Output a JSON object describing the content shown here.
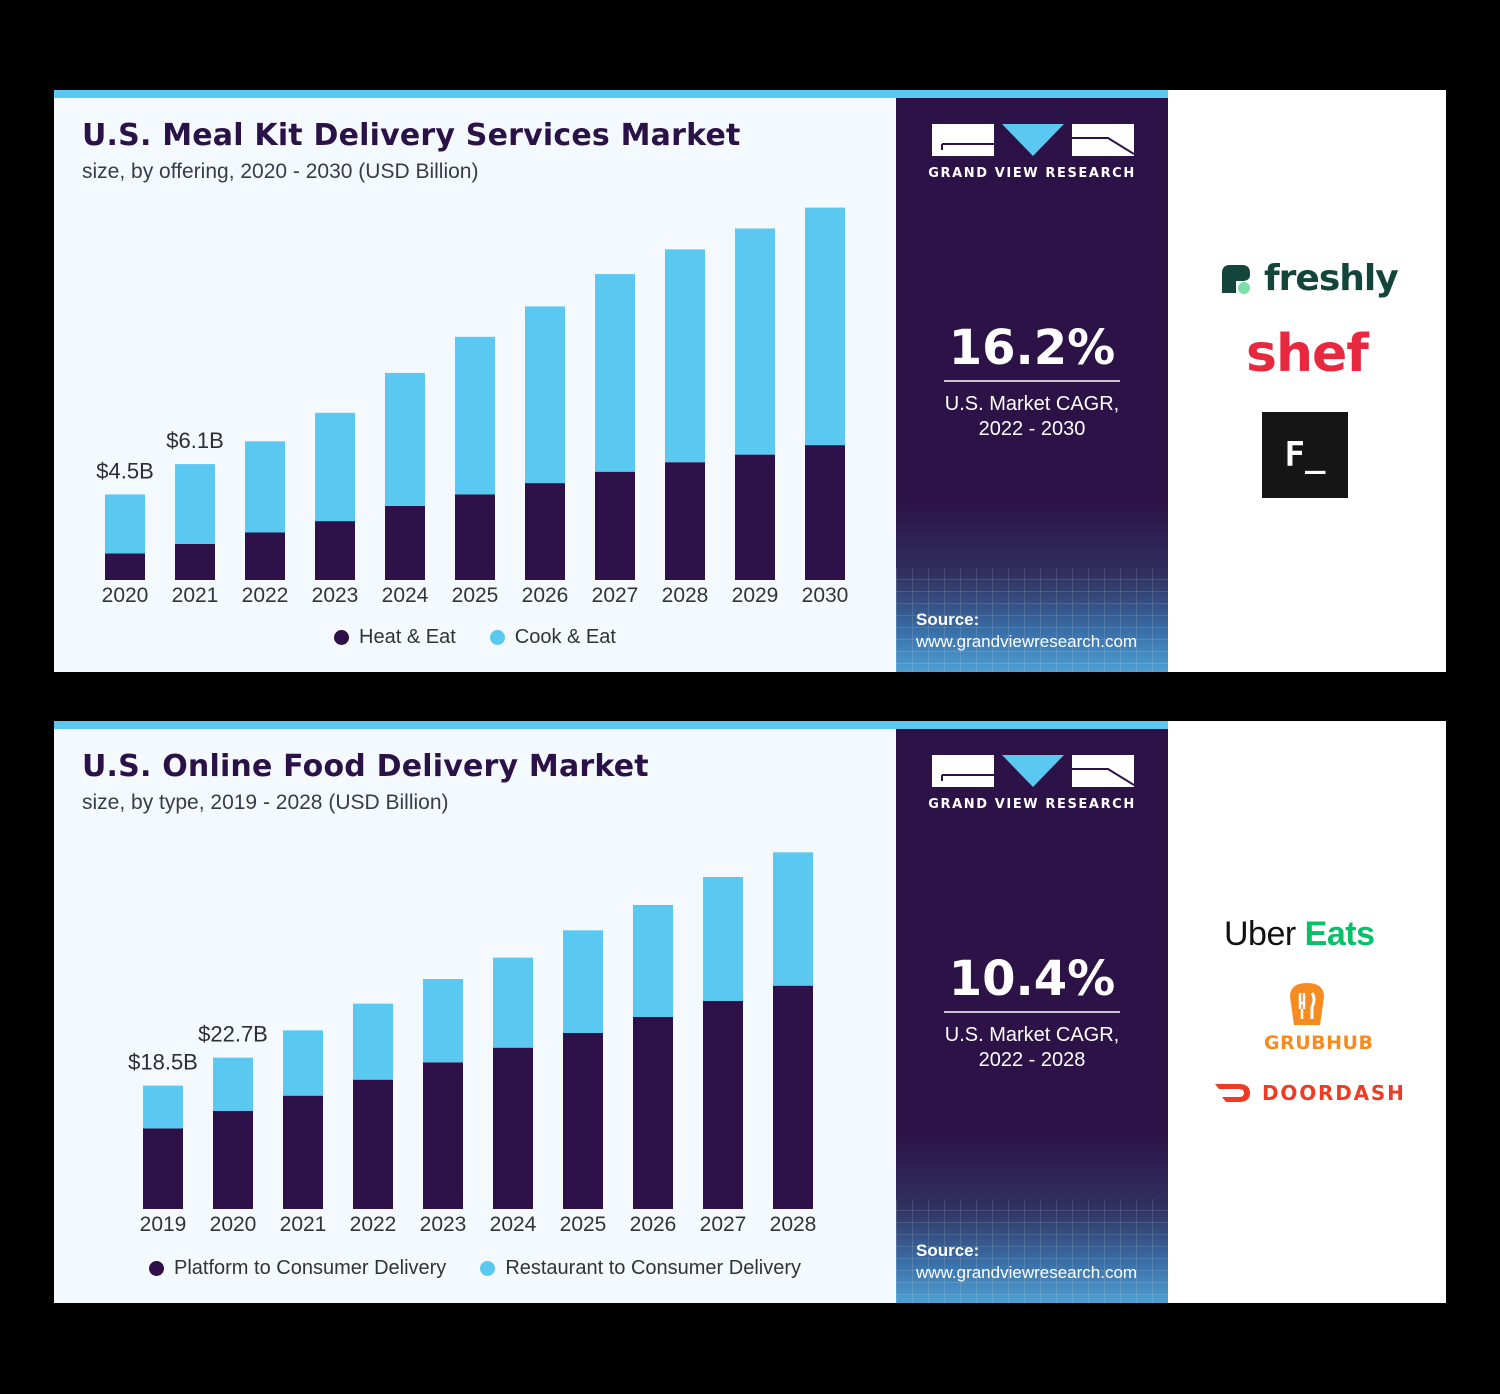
{
  "panels": [
    {
      "title": "U.S. Meal Kit Delivery Services Market",
      "subtitle": "size, by offering, 2020 - 2030 (USD Billion)",
      "brand_name": "GRAND VIEW RESEARCH",
      "cagr": {
        "value": "16.2%",
        "label_line1": "U.S. Market CAGR,",
        "label_line2": "2022 - 2030"
      },
      "source": {
        "label": "Source:",
        "url": "www.grandviewresearch.com"
      },
      "logos": {
        "freshly": "freshly",
        "shef": "shef",
        "f_box": "F_"
      },
      "colors": {
        "series_dark": "#2d1148",
        "series_light": "#5bc8f2"
      },
      "chart_data": {
        "type": "bar",
        "stacked": true,
        "categories": [
          "2020",
          "2021",
          "2022",
          "2023",
          "2024",
          "2025",
          "2026",
          "2027",
          "2028",
          "2029",
          "2030"
        ],
        "series": [
          {
            "name": "Heat & Eat",
            "values": [
              1.4,
              1.9,
              2.5,
              3.1,
              3.9,
              4.5,
              5.1,
              5.7,
              6.2,
              6.6,
              7.1
            ]
          },
          {
            "name": "Cook & Eat",
            "values": [
              3.1,
              4.2,
              4.8,
              5.7,
              7.0,
              8.3,
              9.3,
              10.4,
              11.2,
              11.9,
              12.5
            ]
          }
        ],
        "data_labels": [
          {
            "category": "2020",
            "text": "$4.5B"
          },
          {
            "category": "2021",
            "text": "$6.1B"
          }
        ],
        "title": "U.S. Meal Kit Delivery Services Market",
        "xlabel": "",
        "ylabel": "",
        "ylim": [
          0,
          20
        ],
        "grid": false,
        "legend": "bottom"
      }
    },
    {
      "title": "U.S. Online Food Delivery Market",
      "subtitle": "size, by type, 2019 - 2028 (USD Billion)",
      "brand_name": "GRAND VIEW RESEARCH",
      "cagr": {
        "value": "10.4%",
        "label_line1": "U.S. Market CAGR,",
        "label_line2": "2022 - 2028"
      },
      "source": {
        "label": "Source:",
        "url": "www.grandviewresearch.com"
      },
      "logos": {
        "uber": "Uber",
        "eats": "Eats",
        "grubhub": "GRUBHUB",
        "doordash": "DOORDASH"
      },
      "colors": {
        "series_dark": "#2d1148",
        "series_light": "#5bc8f2"
      },
      "chart_data": {
        "type": "bar",
        "stacked": true,
        "categories": [
          "2019",
          "2020",
          "2021",
          "2022",
          "2023",
          "2024",
          "2025",
          "2026",
          "2027",
          "2028"
        ],
        "series": [
          {
            "name": "Platform to Consumer Delivery",
            "values": [
              12.1,
              14.7,
              17.0,
              19.4,
              22.0,
              24.2,
              26.4,
              28.8,
              31.2,
              33.5
            ]
          },
          {
            "name": "Restaurant to Consumer Delivery",
            "values": [
              6.4,
              8.0,
              9.8,
              11.4,
              12.5,
              13.5,
              15.4,
              16.8,
              18.6,
              20.0
            ]
          }
        ],
        "data_labels": [
          {
            "category": "2019",
            "text": "$18.5B"
          },
          {
            "category": "2020",
            "text": "$22.7B"
          }
        ],
        "title": "U.S. Online Food Delivery Market",
        "xlabel": "",
        "ylabel": "",
        "ylim": [
          0,
          60
        ],
        "grid": false,
        "legend": "bottom"
      }
    }
  ]
}
